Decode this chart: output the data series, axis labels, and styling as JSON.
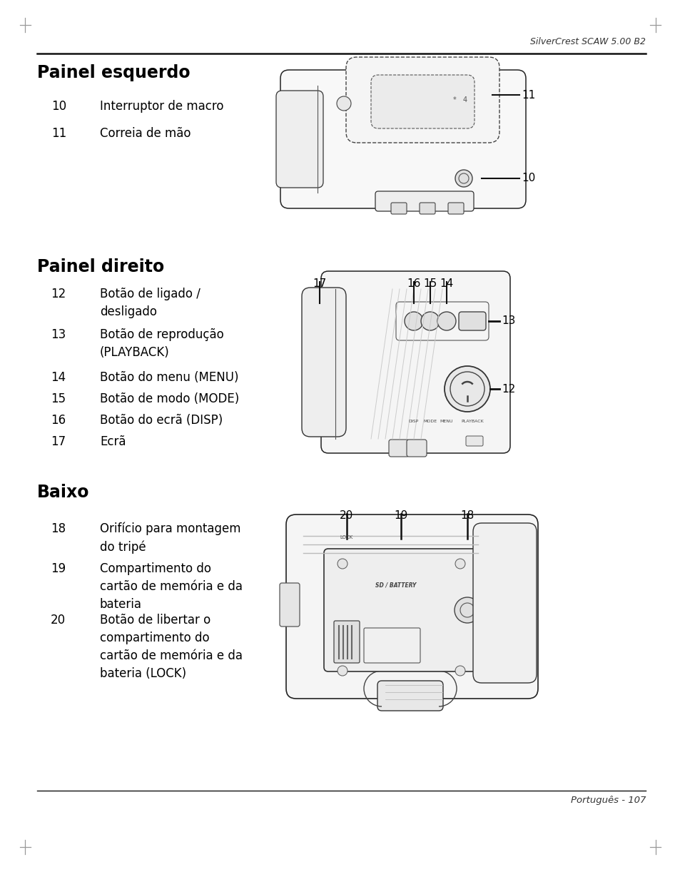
{
  "page_header": "SilverCrest SCAW 5.00 B2",
  "page_footer": "Português - 107",
  "section1_title": "Painel esquerdo",
  "section1_items": [
    {
      "num": "10",
      "text": "Interruptor de macro"
    },
    {
      "num": "11",
      "text": "Correia de mão"
    }
  ],
  "section2_title": "Painel direito",
  "section2_items": [
    {
      "num": "12",
      "text": "Botão de ligado /\ndesligado"
    },
    {
      "num": "13",
      "text": "Botão de reprodução\n(PLAYBACK)"
    },
    {
      "num": "14",
      "text": "Botão do menu (MENU)"
    },
    {
      "num": "15",
      "text": "Botão de modo (MODE)"
    },
    {
      "num": "16",
      "text": "Botão do ecrã (DISP)"
    },
    {
      "num": "17",
      "text": "Ecrã"
    }
  ],
  "section3_title": "Baixo",
  "section3_items": [
    {
      "num": "18",
      "text": "Orifício para montagem\ndo tripé"
    },
    {
      "num": "19",
      "text": "Compartimento do\ncartão de memória e da\nbateria"
    },
    {
      "num": "20",
      "text": "Botão de libertar o\ncompartimento do\ncartão de memória e da\nbateria (LOCK)"
    }
  ],
  "bg_color": "#ffffff",
  "text_color": "#000000"
}
